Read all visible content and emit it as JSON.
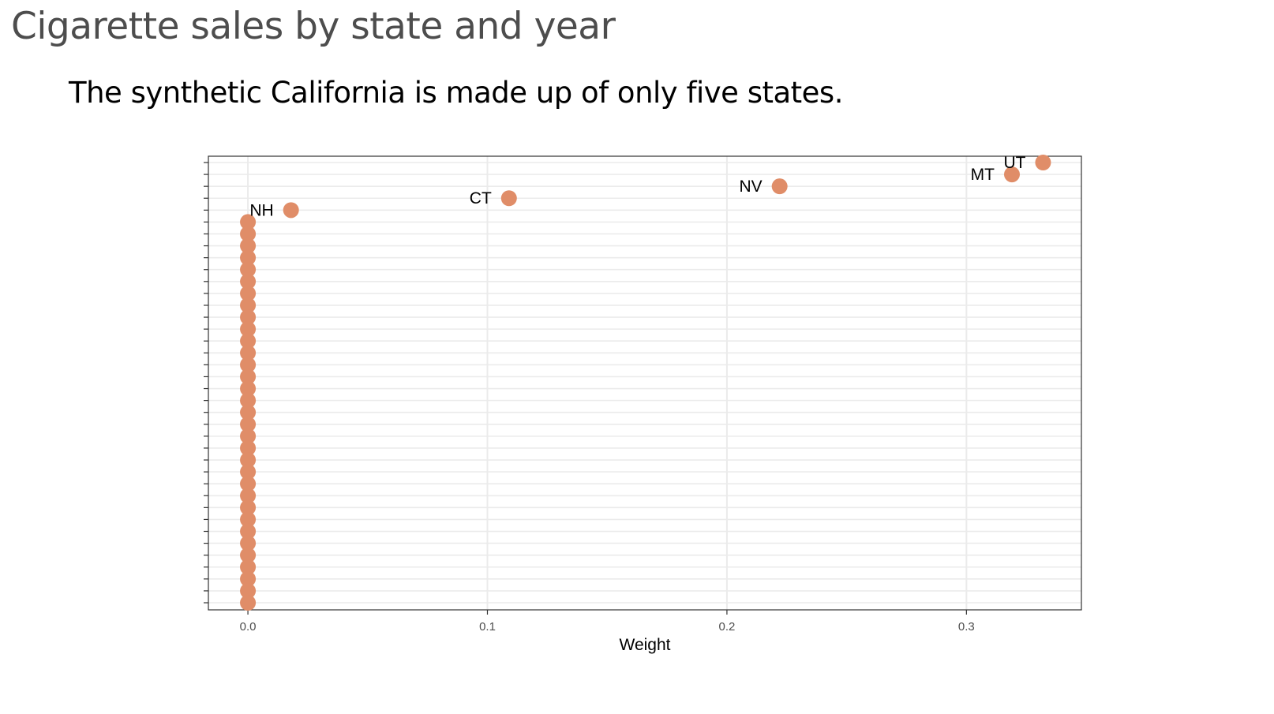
{
  "slide": {
    "title": "Cigarette sales by state and year",
    "subtitle": "The synthetic California is made up of only five states."
  },
  "chart_data": {
    "type": "scatter",
    "title": "",
    "xlabel": "Weight",
    "ylabel": "",
    "xlim": [
      -0.0165,
      0.348
    ],
    "x_ticks": [
      "0.0",
      "0.1",
      "0.2",
      "0.3"
    ],
    "x_tick_values": [
      0.0,
      0.1,
      0.2,
      0.3
    ],
    "grid": true,
    "legend": "none",
    "point_color": "#e08d68",
    "points": [
      {
        "label": "UT",
        "x": 0.332
      },
      {
        "label": "MT",
        "x": 0.319
      },
      {
        "label": "NV",
        "x": 0.222
      },
      {
        "label": "CT",
        "x": 0.109
      },
      {
        "label": "NH",
        "x": 0.018
      },
      {
        "label": "",
        "x": 0
      },
      {
        "label": "",
        "x": 0
      },
      {
        "label": "",
        "x": 0
      },
      {
        "label": "",
        "x": 0
      },
      {
        "label": "",
        "x": 0
      },
      {
        "label": "",
        "x": 0
      },
      {
        "label": "",
        "x": 0
      },
      {
        "label": "",
        "x": 0
      },
      {
        "label": "",
        "x": 0
      },
      {
        "label": "",
        "x": 0
      },
      {
        "label": "",
        "x": 0
      },
      {
        "label": "",
        "x": 0
      },
      {
        "label": "",
        "x": 0
      },
      {
        "label": "",
        "x": 0
      },
      {
        "label": "",
        "x": 0
      },
      {
        "label": "",
        "x": 0
      },
      {
        "label": "",
        "x": 0
      },
      {
        "label": "",
        "x": 0
      },
      {
        "label": "",
        "x": 0
      },
      {
        "label": "",
        "x": 0
      },
      {
        "label": "",
        "x": 0
      },
      {
        "label": "",
        "x": 0
      },
      {
        "label": "",
        "x": 0
      },
      {
        "label": "",
        "x": 0
      },
      {
        "label": "",
        "x": 0
      },
      {
        "label": "",
        "x": 0
      },
      {
        "label": "",
        "x": 0
      },
      {
        "label": "",
        "x": 0
      },
      {
        "label": "",
        "x": 0
      },
      {
        "label": "",
        "x": 0
      },
      {
        "label": "",
        "x": 0
      },
      {
        "label": "",
        "x": 0
      },
      {
        "label": "",
        "x": 0
      }
    ]
  }
}
